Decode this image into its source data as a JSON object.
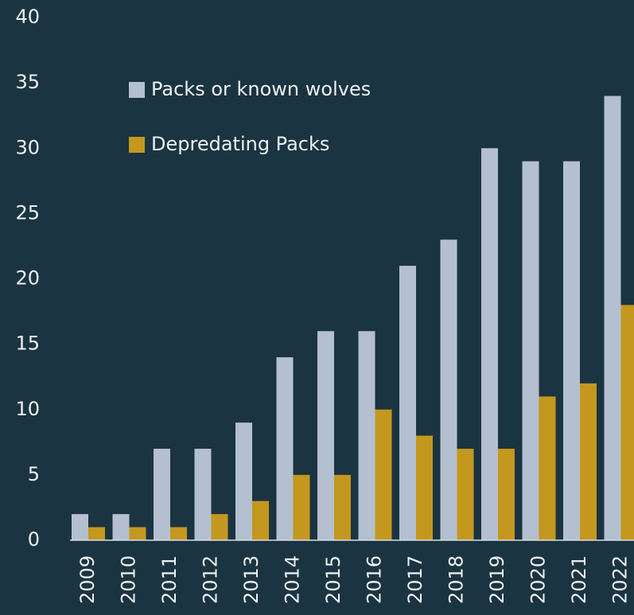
{
  "chart_data": {
    "type": "bar",
    "categories": [
      "2009",
      "2010",
      "2011",
      "2012",
      "2013",
      "2014",
      "2015",
      "2016",
      "2017",
      "2018",
      "2019",
      "2020",
      "2021",
      "2022"
    ],
    "series": [
      {
        "name": "Packs or known wolves",
        "color": "#b4bfcf",
        "values": [
          2,
          2,
          7,
          7,
          9,
          14,
          16,
          16,
          21,
          23,
          30,
          29,
          29,
          34
        ]
      },
      {
        "name": "Depredating Packs",
        "color": "#c4971f",
        "values": [
          1,
          1,
          1,
          2,
          3,
          5,
          5,
          10,
          8,
          7,
          7,
          11,
          12,
          18
        ]
      }
    ],
    "ylim": [
      0,
      40
    ],
    "yticks": [
      0,
      5,
      10,
      15,
      20,
      25,
      30,
      35,
      40
    ],
    "grid": false
  }
}
